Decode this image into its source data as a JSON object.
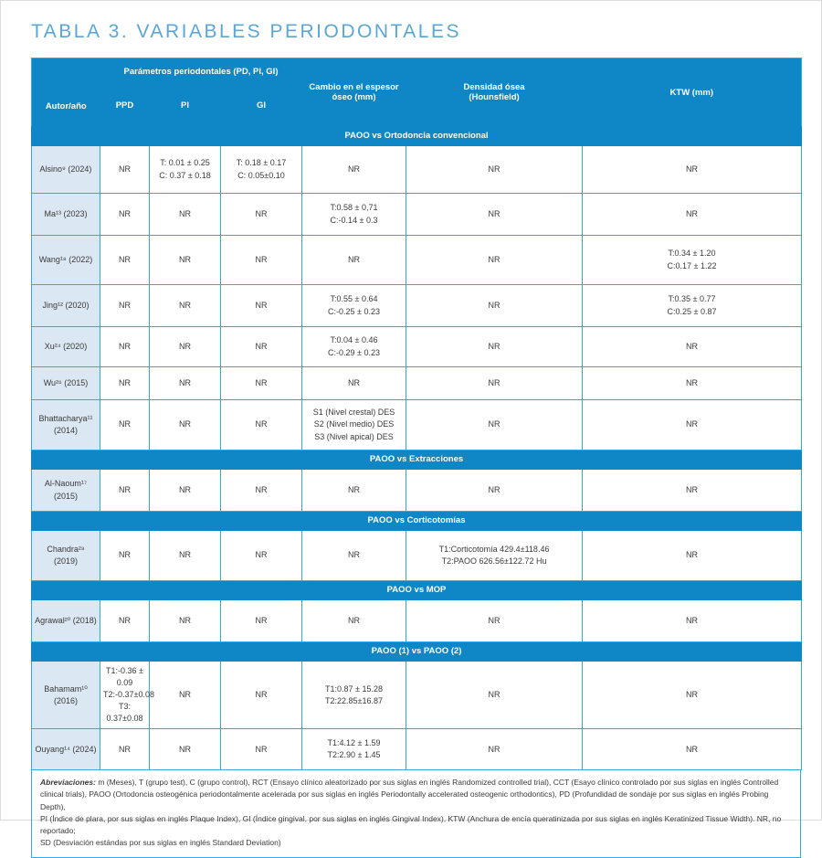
{
  "title": "Tabla 3. Variables periodontales",
  "colors": {
    "header_blue": "#0f87c6",
    "section_blue": "#0f87c6",
    "author_cell_blue": "#dbe7f3",
    "grid_border": "#2fabdf",
    "title_blue": "#5aa7d5"
  },
  "table": {
    "group_header": "Parámetros periodontales (PD, PI,  GI)",
    "columns": {
      "autor": "Autor/año",
      "ppd": "PPD",
      "pi": "PI",
      "gi": "GI",
      "cambio": "Cambio en el espesor\nóseo (mm)",
      "densidad": "Densidad ósea\n(Hounsfield)",
      "ktw": "KTW (mm)"
    },
    "sections": [
      {
        "label": "PAOO vs Ortodoncia convencional",
        "rows": [
          {
            "author": "Alsino⁹ (2024)",
            "values": [
              "NR",
              "T: 0.01 ± 0.25\nC: 0.37 ± 0.18",
              "T: 0.18 ± 0.17\nC: 0.05±0.10",
              "NR",
              "NR",
              "NR"
            ]
          },
          {
            "author": "Ma¹³ (2023)",
            "values": [
              "NR",
              "NR",
              "NR",
              "T:0.58 ± 0,71\nC:-0.14 ± 0.3",
              "NR",
              "NR"
            ]
          },
          {
            "author": "Wang¹⁸ (2022)",
            "values": [
              "NR",
              "NR",
              "NR",
              "NR",
              "NR",
              "T:0.34 ± 1.20\nC:0.17 ± 1.22"
            ]
          },
          {
            "author": "Jing¹² (2020)",
            "values": [
              "NR",
              "NR",
              "NR",
              "T:0.55 ± 0.64\nC:-0.25 ± 0.23",
              "NR",
              "T:0.35 ± 0.77\nC:0.25 ± 0.87"
            ]
          },
          {
            "author": "Xu²⁴ (2020)",
            "values": [
              "NR",
              "NR",
              "NR",
              "T:0.04 ± 0.46\nC:-0.29 ± 0.23",
              "NR",
              "NR"
            ]
          },
          {
            "author": "Wu²⁶ (2015)",
            "values": [
              "NR",
              "NR",
              "NR",
              "NR",
              "NR",
              "NR"
            ]
          },
          {
            "author": "Bhattacharya¹¹\n(2014)",
            "values": [
              "NR",
              "NR",
              "NR",
              "S1 (Nivel crestal) DES\nS2 (Nivel medio) DES\nS3 (Nivel apical) DES",
              "NR",
              "NR"
            ]
          }
        ]
      },
      {
        "label": "PAOO vs Extracciones",
        "rows": [
          {
            "author": "Al-Naoum¹⁷ (2015)",
            "values": [
              "NR",
              "NR",
              "NR",
              "NR",
              "NR",
              "NR"
            ]
          }
        ]
      },
      {
        "label": "PAOO vs Corticotomías",
        "rows": [
          {
            "author": "Chandra²⁸ (2019)",
            "values": [
              "NR",
              "NR",
              "NR",
              "NR",
              "T1:Corticotomía 429.4±118.46\nT2:PAOO 626.56±122.72 Hu",
              "NR"
            ]
          }
        ]
      },
      {
        "label": "PAOO vs MOP",
        "rows": [
          {
            "author": "Agrawal²⁰ (2018)",
            "values": [
              "NR",
              "NR",
              "NR",
              "NR",
              "NR",
              "NR"
            ]
          }
        ]
      },
      {
        "label": "PAOO (1) vs PAOO (2)",
        "rows": [
          {
            "author": "Bahamam¹⁰ (2016)",
            "values": [
              "T1:-0.36 ± 0.09\nT2:-0.37±0.08\nT3: 0.37±0.08",
              "NR",
              "NR",
              "T1:0.87 ± 15.28\nT2:22.85±16.87",
              "NR",
              "NR"
            ]
          },
          {
            "author": "Ouyang¹⁴ (2024)",
            "values": [
              "NR",
              "NR",
              "NR",
              "T1:4.12 ± 1.59\nT2:2.90 ± 1.45",
              "NR",
              "NR"
            ]
          }
        ]
      }
    ]
  },
  "footer": {
    "label": "Abreviaciones:",
    "text": " m (Meses), T (grupo test), C (grupo control), RCT (Ensayo clínico aleatorizado por sus siglas en inglés Randomized controlled trial), CCT (Esayo clínico controlado por sus siglas en inglés Controlled clinical trials), PAOO (Ortodoncia osteogénica periodontalmente acelerada por sus siglas en inglés Periodontally accelerated osteogenic orthodontics), PD (Profundidad de sondaje por sus siglas en inglés Probing Depth),\nPI (Índice de plara, por sus siglas en inglés Plaque Index), GI (Índice gingival, por sus siglas en inglés Gingival Index), KTW (Anchura de encía queratinizada por sus siglas en inglés Keratinized Tissue Width). NR, no reportado;\nSD (Desviación estándas por sus siglas en inglés Standard Deviation)"
  }
}
